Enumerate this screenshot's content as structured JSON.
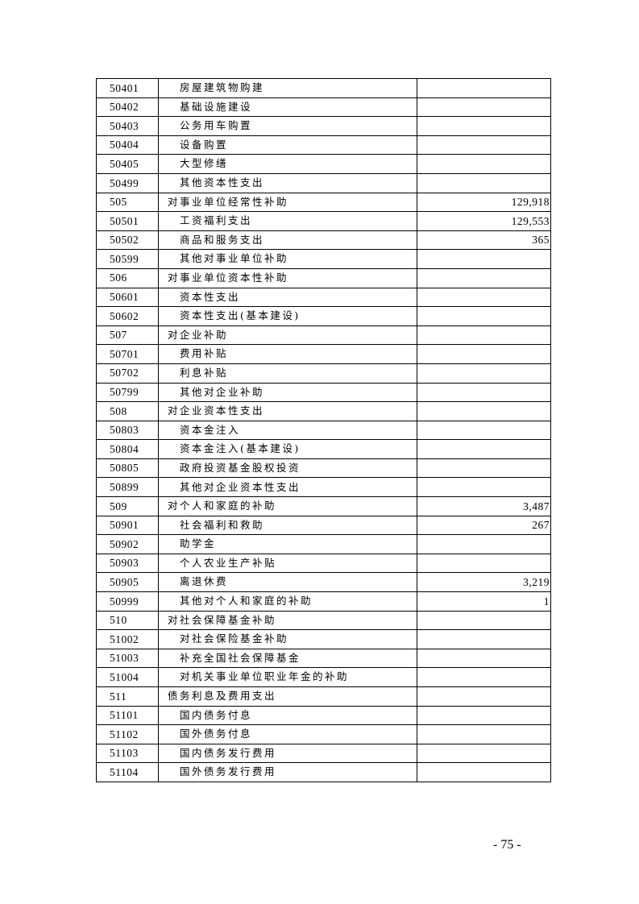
{
  "rows": [
    {
      "code": "50401",
      "name": "房屋建筑物购建",
      "value": "",
      "sub": true
    },
    {
      "code": "50402",
      "name": "基础设施建设",
      "value": "",
      "sub": true
    },
    {
      "code": "50403",
      "name": "公务用车购置",
      "value": "",
      "sub": true
    },
    {
      "code": "50404",
      "name": "设备购置",
      "value": "",
      "sub": true
    },
    {
      "code": "50405",
      "name": "大型修缮",
      "value": "",
      "sub": true
    },
    {
      "code": "50499",
      "name": "其他资本性支出",
      "value": "",
      "sub": true
    },
    {
      "code": "505",
      "name": "对事业单位经常性补助",
      "value": "129,918",
      "sub": false
    },
    {
      "code": "50501",
      "name": "工资福利支出",
      "value": "129,553",
      "sub": true
    },
    {
      "code": "50502",
      "name": "商品和服务支出",
      "value": "365",
      "sub": true
    },
    {
      "code": "50599",
      "name": "其他对事业单位补助",
      "value": "",
      "sub": true
    },
    {
      "code": "506",
      "name": "对事业单位资本性补助",
      "value": "",
      "sub": false
    },
    {
      "code": "50601",
      "name": "资本性支出",
      "value": "",
      "sub": true
    },
    {
      "code": "50602",
      "name": "资本性支出(基本建设)",
      "value": "",
      "sub": true
    },
    {
      "code": "507",
      "name": "对企业补助",
      "value": "",
      "sub": false
    },
    {
      "code": "50701",
      "name": "费用补贴",
      "value": "",
      "sub": true
    },
    {
      "code": "50702",
      "name": "利息补贴",
      "value": "",
      "sub": true
    },
    {
      "code": "50799",
      "name": "其他对企业补助",
      "value": "",
      "sub": true
    },
    {
      "code": "508",
      "name": "对企业资本性支出",
      "value": "",
      "sub": false
    },
    {
      "code": "50803",
      "name": "资本金注入",
      "value": "",
      "sub": true
    },
    {
      "code": "50804",
      "name": "资本金注入(基本建设)",
      "value": "",
      "sub": true
    },
    {
      "code": "50805",
      "name": "政府投资基金股权投资",
      "value": "",
      "sub": true
    },
    {
      "code": "50899",
      "name": "其他对企业资本性支出",
      "value": "",
      "sub": true
    },
    {
      "code": "509",
      "name": "对个人和家庭的补助",
      "value": "3,487",
      "sub": false
    },
    {
      "code": "50901",
      "name": "社会福利和救助",
      "value": "267",
      "sub": true
    },
    {
      "code": "50902",
      "name": "助学金",
      "value": "",
      "sub": true
    },
    {
      "code": "50903",
      "name": "个人农业生产补贴",
      "value": "",
      "sub": true
    },
    {
      "code": "50905",
      "name": "离退休费",
      "value": "3,219",
      "sub": true
    },
    {
      "code": "50999",
      "name": "其他对个人和家庭的补助",
      "value": "1",
      "sub": true
    },
    {
      "code": "510",
      "name": "对社会保障基金补助",
      "value": "",
      "sub": false
    },
    {
      "code": "51002",
      "name": "对社会保险基金补助",
      "value": "",
      "sub": true
    },
    {
      "code": "51003",
      "name": "补充全国社会保障基金",
      "value": "",
      "sub": true
    },
    {
      "code": "51004",
      "name": "对机关事业单位职业年金的补助",
      "value": "",
      "sub": true
    },
    {
      "code": "511",
      "name": "债务利息及费用支出",
      "value": "",
      "sub": false
    },
    {
      "code": "51101",
      "name": "国内债务付息",
      "value": "",
      "sub": true
    },
    {
      "code": "51102",
      "name": "国外债务付息",
      "value": "",
      "sub": true
    },
    {
      "code": "51103",
      "name": "国内债务发行费用",
      "value": "",
      "sub": true
    },
    {
      "code": "51104",
      "name": "国外债务发行费用",
      "value": "",
      "sub": true
    }
  ],
  "page_number": "- 75 -"
}
